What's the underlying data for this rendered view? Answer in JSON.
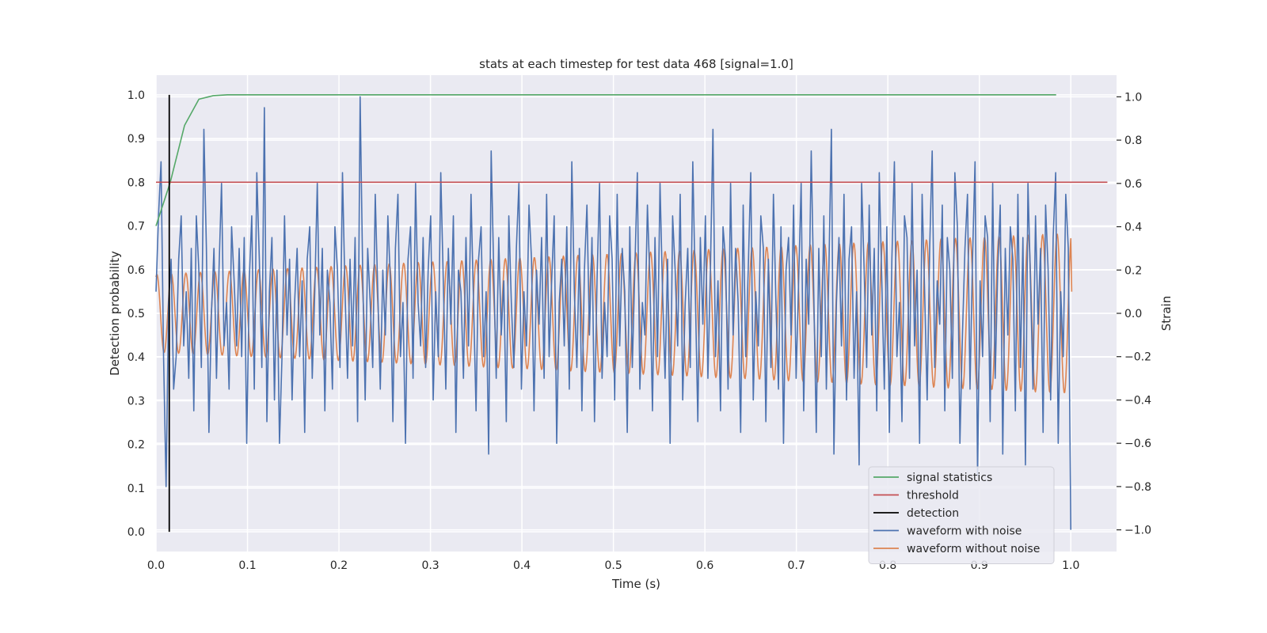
{
  "chart_data": {
    "type": "line",
    "title": "stats at each timestep for test data 468 [signal=1.0]",
    "xlabel": "Time (s)",
    "ylabel": "Detection probability",
    "ylabel_right": "Strain",
    "xlim": [
      0.0,
      1.05
    ],
    "ylim": [
      -0.045,
      1.045
    ],
    "ylim_right": [
      -1.1,
      1.1
    ],
    "x_ticks": [
      0.0,
      0.1,
      0.2,
      0.3,
      0.4,
      0.5,
      0.6,
      0.7,
      0.8,
      0.9,
      1.0
    ],
    "x_tick_labels": [
      "0.0",
      "0.1",
      "0.2",
      "0.3",
      "0.4",
      "0.5",
      "0.6",
      "0.7",
      "0.8",
      "0.9",
      "1.0"
    ],
    "y_ticks": [
      0.0,
      0.1,
      0.2,
      0.3,
      0.4,
      0.5,
      0.6,
      0.7,
      0.8,
      0.9,
      1.0
    ],
    "y_tick_labels": [
      "0.0",
      "0.1",
      "0.2",
      "0.3",
      "0.4",
      "0.5",
      "0.6",
      "0.7",
      "0.8",
      "0.9",
      "1.0"
    ],
    "y_ticks_right": [
      -1.0,
      -0.8,
      -0.6,
      -0.4,
      -0.2,
      0.0,
      0.2,
      0.4,
      0.6,
      0.8,
      1.0
    ],
    "y_tick_labels_right": [
      "−1.0",
      "−0.8",
      "−0.6",
      "−0.4",
      "−0.2",
      "0.0",
      "0.2",
      "0.4",
      "0.6",
      "0.8",
      "1.0"
    ],
    "grid": true,
    "legend_position": "lower-right",
    "series": [
      {
        "name": "signal statistics",
        "color": "#55a868",
        "axis": "left",
        "x": [
          0.0,
          0.0156,
          0.0312,
          0.0469,
          0.0625,
          0.078,
          0.2,
          0.4,
          0.6,
          0.8,
          0.984
        ],
        "y": [
          0.7,
          0.8,
          0.93,
          0.99,
          0.998,
          1.0,
          1.0,
          1.0,
          1.0,
          1.0,
          1.0
        ]
      },
      {
        "name": "threshold",
        "color": "#c44e52",
        "axis": "left",
        "x": [
          0.0,
          1.04
        ],
        "y": [
          0.8,
          0.8
        ]
      },
      {
        "name": "detection",
        "color": "#000000",
        "axis": "left",
        "x": [
          0.0145,
          0.0145
        ],
        "y": [
          0.0,
          1.0
        ]
      },
      {
        "name": "waveform with noise",
        "color": "#4c72b0",
        "axis": "right",
        "x_range": [
          0.0,
          1.0
        ],
        "y": [
          0.1,
          0.45,
          0.7,
          -0.2,
          -0.8,
          0.05,
          0.25,
          -0.35,
          -0.2,
          0.25,
          0.45,
          -0.15,
          0.1,
          -0.3,
          0.3,
          -0.45,
          0.45,
          0.2,
          -0.25,
          0.85,
          0.3,
          -0.55,
          0.0,
          0.3,
          -0.3,
          0.2,
          0.6,
          -0.15,
          0.05,
          -0.35,
          0.4,
          0.15,
          -0.15,
          0.3,
          -0.2,
          0.35,
          -0.6,
          0.15,
          0.45,
          -0.35,
          0.65,
          0.25,
          -0.25,
          0.95,
          -0.5,
          0.1,
          0.35,
          -0.4,
          0.2,
          -0.6,
          -0.2,
          0.45,
          -0.1,
          0.25,
          -0.4,
          0.05,
          0.3,
          -0.2,
          0.15,
          -0.55,
          0.25,
          0.4,
          -0.3,
          0.1,
          0.6,
          -0.1,
          0.3,
          -0.45,
          0.2,
          0.05,
          -0.35,
          0.4,
          0.2,
          -0.25,
          0.65,
          0.1,
          -0.3,
          0.25,
          -0.15,
          0.35,
          -0.5,
          1.0,
          0.2,
          -0.4,
          0.3,
          0.05,
          -0.25,
          0.55,
          0.1,
          -0.35,
          0.2,
          -0.1,
          0.45,
          0.15,
          -0.5,
          0.3,
          0.55,
          -0.2,
          0.05,
          -0.6,
          0.25,
          0.4,
          -0.3,
          0.6,
          0.05,
          -0.15,
          0.35,
          -0.25,
          0.2,
          0.45,
          -0.4,
          0.1,
          -0.2,
          0.65,
          0.15,
          -0.35,
          0.3,
          -0.05,
          0.45,
          -0.55,
          0.2,
          0.1,
          -0.3,
          0.35,
          -0.15,
          0.55,
          0.05,
          -0.45,
          0.25,
          0.4,
          -0.2,
          0.1,
          -0.65,
          0.75,
          0.2,
          -0.3,
          0.35,
          -0.1,
          0.15,
          -0.5,
          0.45,
          0.05,
          -0.25,
          0.3,
          0.6,
          -0.35,
          0.1,
          -0.15,
          0.5,
          0.25,
          -0.45,
          0.2,
          -0.05,
          0.35,
          -0.3,
          0.55,
          -0.2,
          0.15,
          0.45,
          -0.6,
          0.05,
          0.25,
          -0.15,
          0.4,
          -0.35,
          0.7,
          0.1,
          -0.25,
          0.3,
          -0.45,
          0.2,
          0.5,
          -0.1,
          0.35,
          -0.5,
          0.15,
          0.6,
          -0.3,
          0.05,
          -0.2,
          0.45,
          0.25,
          -0.4,
          0.55,
          -0.15,
          0.3,
          0.1,
          -0.55,
          0.4,
          -0.25,
          0.2,
          0.65,
          -0.35,
          0.05,
          -0.1,
          0.5,
          0.15,
          -0.45,
          0.35,
          -0.2,
          0.6,
          0.1,
          -0.3,
          0.25,
          -0.6,
          0.45,
          0.2,
          -0.15,
          0.55,
          -0.4,
          0.05,
          0.3,
          -0.25,
          0.7,
          0.1,
          -0.5,
          0.35,
          -0.05,
          0.45,
          -0.3,
          0.2,
          0.85,
          -0.2,
          0.15,
          -0.45,
          0.4,
          0.25,
          -0.35,
          0.6,
          -0.1,
          0.3,
          0.05,
          -0.55,
          0.5,
          -0.2,
          0.2,
          0.65,
          -0.4,
          0.1,
          -0.15,
          0.45,
          0.3,
          -0.5,
          0.25,
          -0.25,
          0.55,
          0.05,
          -0.35,
          0.4,
          -0.6,
          0.2,
          0.35,
          -0.1,
          0.5,
          -0.3,
          0.15,
          0.6,
          -0.45,
          0.25,
          -0.05,
          0.75,
          0.1,
          -0.55,
          0.3,
          -0.2,
          0.45,
          -0.35,
          0.2,
          0.85,
          -0.65,
          0.05,
          0.35,
          -0.15,
          0.55,
          -0.4,
          0.25,
          0.4,
          -0.3,
          0.1,
          -0.7,
          0.6,
          0.2,
          -0.25,
          0.5,
          -0.1,
          0.3,
          -0.45,
          0.65,
          0.15,
          -0.35,
          0.4,
          -0.55,
          0.25,
          0.7,
          -0.2,
          0.05,
          -0.5,
          0.45,
          0.35,
          -0.3,
          0.6,
          -0.15,
          0.2,
          -0.6,
          0.55,
          0.1,
          -0.4,
          0.3,
          0.75,
          -0.25,
          0.15,
          -0.05,
          0.5,
          -0.45,
          0.35,
          0.2,
          -0.3,
          0.65,
          0.4,
          -0.6,
          -0.1,
          0.3,
          0.55,
          -0.35,
          0.25,
          0.7,
          -0.75,
          0.15,
          -0.2,
          0.45,
          0.35,
          -0.5,
          0.6,
          -0.3,
          0.2,
          0.5,
          -0.65,
          0.3,
          -0.1,
          0.4,
          0.25,
          -0.45,
          0.55,
          -0.25,
          0.35,
          -0.7,
          0.6,
          0.15,
          -0.35,
          0.45,
          -0.05,
          0.3,
          -0.55,
          0.5,
          0.2,
          -0.4,
          0.35,
          0.65,
          -0.6,
          0.1,
          -0.2,
          0.55,
          0.3,
          -1.0
        ]
      },
      {
        "name": "waveform without noise",
        "color": "#dd8452",
        "axis": "right",
        "x_range": [
          0.0,
          1.0
        ],
        "amplitude_start": 0.18,
        "amplitude_end": 0.37,
        "cycles": 63,
        "y_end": 0.1
      }
    ]
  }
}
